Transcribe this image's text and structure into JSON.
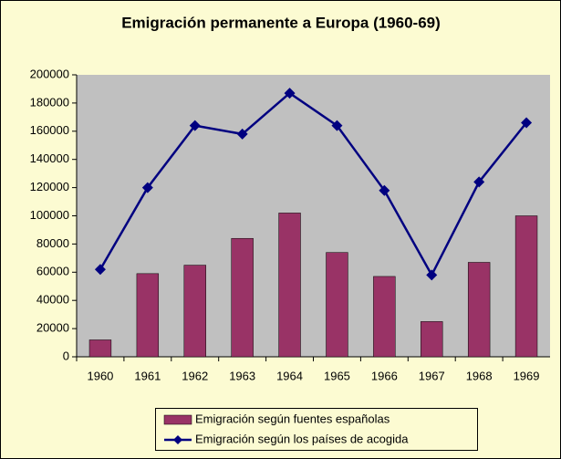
{
  "chart_data": {
    "type": "combo",
    "title": "Emigración permanente a Europa (1960-69)",
    "categories": [
      "1960",
      "1961",
      "1962",
      "1963",
      "1964",
      "1965",
      "1966",
      "1967",
      "1968",
      "1969"
    ],
    "series": [
      {
        "name": "Emigración según fuentes españolas",
        "type": "bar",
        "color": "#993366",
        "values": [
          12000,
          59000,
          65000,
          84000,
          102000,
          74000,
          57000,
          25000,
          67000,
          100000
        ]
      },
      {
        "name": "Emigración según los países de acogida",
        "type": "line",
        "color": "#000080",
        "values": [
          62000,
          120000,
          164000,
          158000,
          187000,
          164000,
          118000,
          58000,
          124000,
          166000
        ]
      }
    ],
    "ylim": [
      0,
      200000
    ],
    "yticks": [
      0,
      20000,
      40000,
      60000,
      80000,
      100000,
      120000,
      140000,
      160000,
      180000,
      200000
    ],
    "grid": false,
    "legend": "bottom"
  }
}
